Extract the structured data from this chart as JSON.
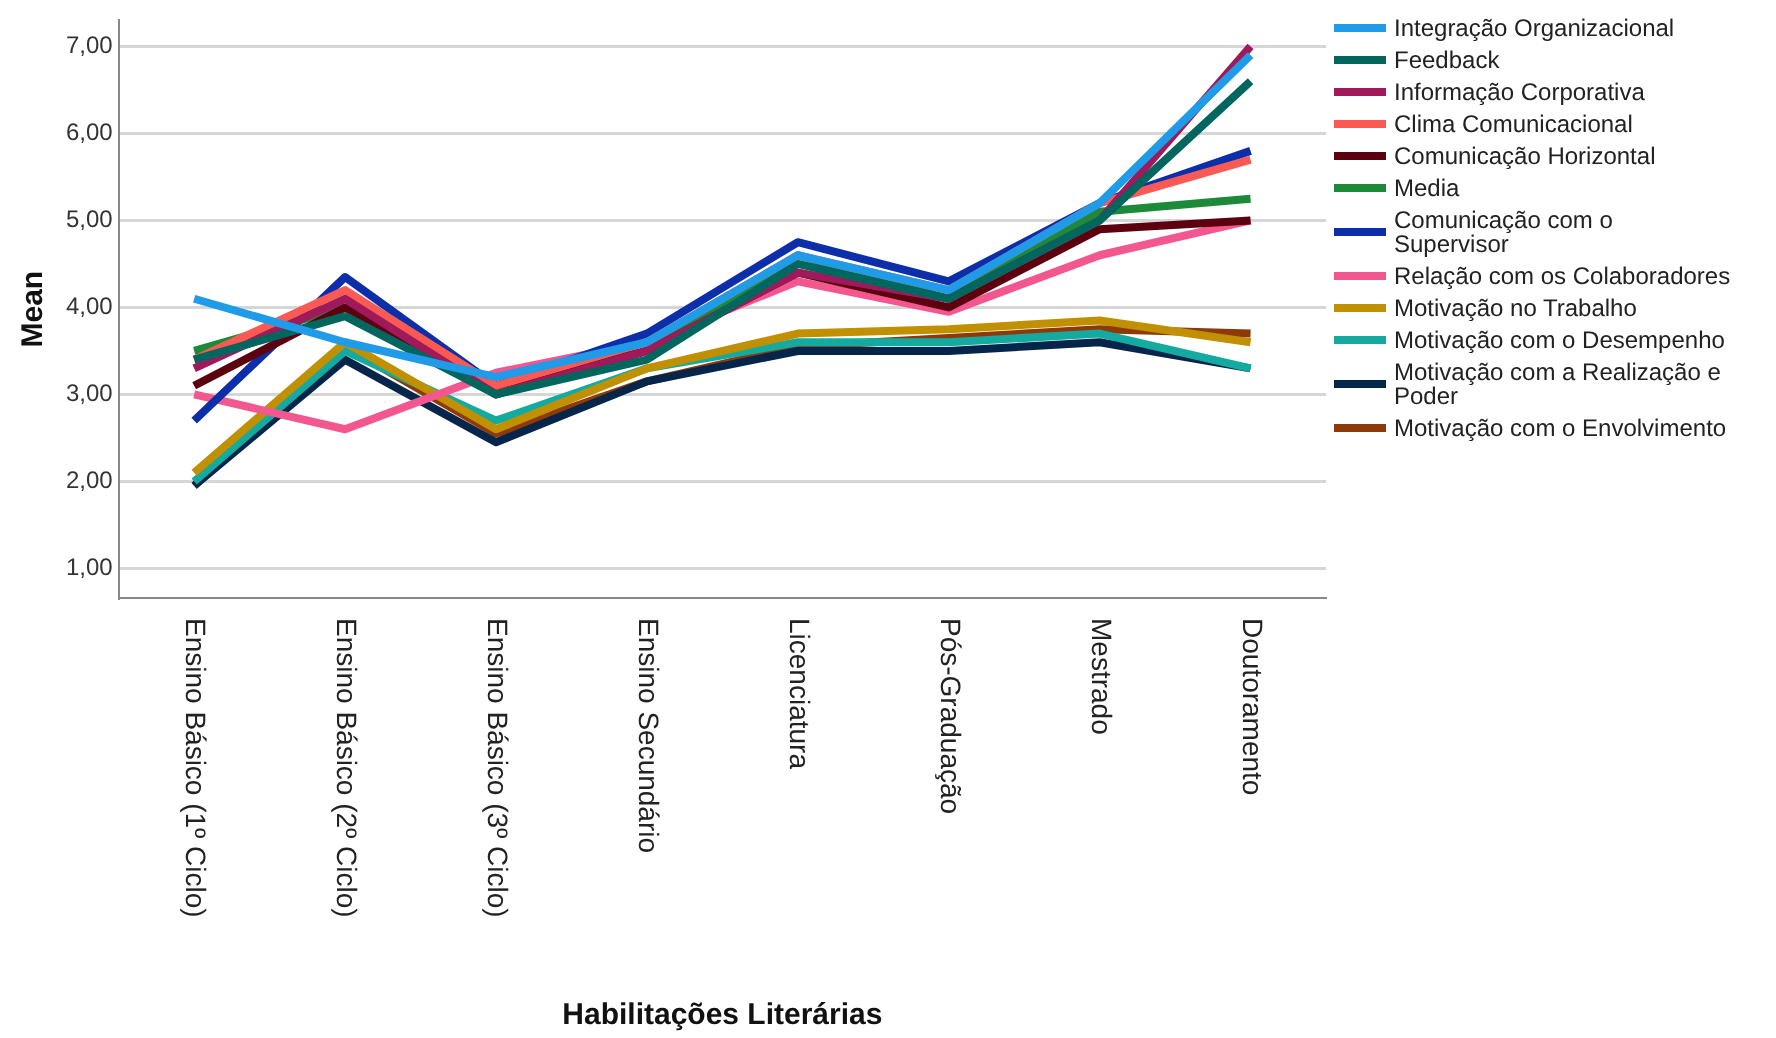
{
  "chart_data": {
    "type": "line",
    "xlabel": "Habilitações Literárias",
    "ylabel": "Mean",
    "categories": [
      "Ensino Básico (1º Ciclo)",
      "Ensino Básico (2º Ciclo)",
      "Ensino Básico (3º Ciclo)",
      "Ensino Secundário",
      "Licenciatura",
      "Pós-Graduação",
      "Mestrado",
      "Doutoramento"
    ],
    "ylim": [
      0.66,
      7.3
    ],
    "yticks": [
      {
        "value": 1,
        "label": "1,00"
      },
      {
        "value": 2,
        "label": "2,00"
      },
      {
        "value": 3,
        "label": "3,00"
      },
      {
        "value": 4,
        "label": "4,00"
      },
      {
        "value": 5,
        "label": "5,00"
      },
      {
        "value": 6,
        "label": "6,00"
      },
      {
        "value": 7,
        "label": "7,00"
      }
    ],
    "grid": "y",
    "legend": "right",
    "marker": "none",
    "line_style": "solid",
    "series": [
      {
        "name": "Integração Organizacional",
        "color": "#1f9be8",
        "values": [
          4.1,
          3.6,
          3.2,
          3.6,
          4.6,
          4.2,
          5.2,
          6.9
        ]
      },
      {
        "name": "Feedback",
        "color": "#00665e",
        "values": [
          3.4,
          3.9,
          3.0,
          3.4,
          4.5,
          4.1,
          5.0,
          6.6
        ]
      },
      {
        "name": "Informação Corporativa",
        "color": "#a0195a",
        "values": [
          3.3,
          4.1,
          3.0,
          3.5,
          4.4,
          4.1,
          5.0,
          7.0
        ]
      },
      {
        "name": "Clima Comunicacional",
        "color": "#fb5a54",
        "values": [
          3.4,
          4.2,
          3.1,
          3.6,
          4.6,
          4.2,
          5.2,
          5.7
        ]
      },
      {
        "name": "Comunicação Horizontal",
        "color": "#5c0010",
        "values": [
          3.1,
          4.0,
          3.1,
          3.5,
          4.4,
          4.0,
          4.9,
          5.0
        ]
      },
      {
        "name": "Media",
        "color": "#1d8a3a",
        "values": [
          3.5,
          4.0,
          3.0,
          3.5,
          4.6,
          4.1,
          5.1,
          5.25
        ]
      },
      {
        "name": "Comunicação com o Supervisor",
        "color": "#0c2ea8",
        "values": [
          2.7,
          4.35,
          3.1,
          3.7,
          4.75,
          4.3,
          5.2,
          5.8
        ]
      },
      {
        "name": "Relação com os Colaboradores",
        "color": "#f2588f",
        "values": [
          3.0,
          2.6,
          3.25,
          3.6,
          4.3,
          3.95,
          4.6,
          5.0
        ]
      },
      {
        "name": "Motivação no Trabalho",
        "color": "#c09000",
        "values": [
          2.1,
          3.6,
          2.6,
          3.3,
          3.7,
          3.75,
          3.85,
          3.6
        ]
      },
      {
        "name": "Motivação com o Desempenho",
        "color": "#14aaa0",
        "values": [
          2.0,
          3.5,
          2.7,
          3.3,
          3.6,
          3.6,
          3.7,
          3.3
        ]
      },
      {
        "name": "Motivação com a Realização e Poder",
        "color": "#06254a",
        "values": [
          1.95,
          3.4,
          2.45,
          3.15,
          3.5,
          3.5,
          3.6,
          3.3
        ]
      },
      {
        "name": "Motivação com o Envolvimento",
        "color": "#8e3a08",
        "values": [
          1.95,
          3.55,
          2.55,
          3.15,
          3.55,
          3.65,
          3.75,
          3.7
        ]
      }
    ]
  }
}
